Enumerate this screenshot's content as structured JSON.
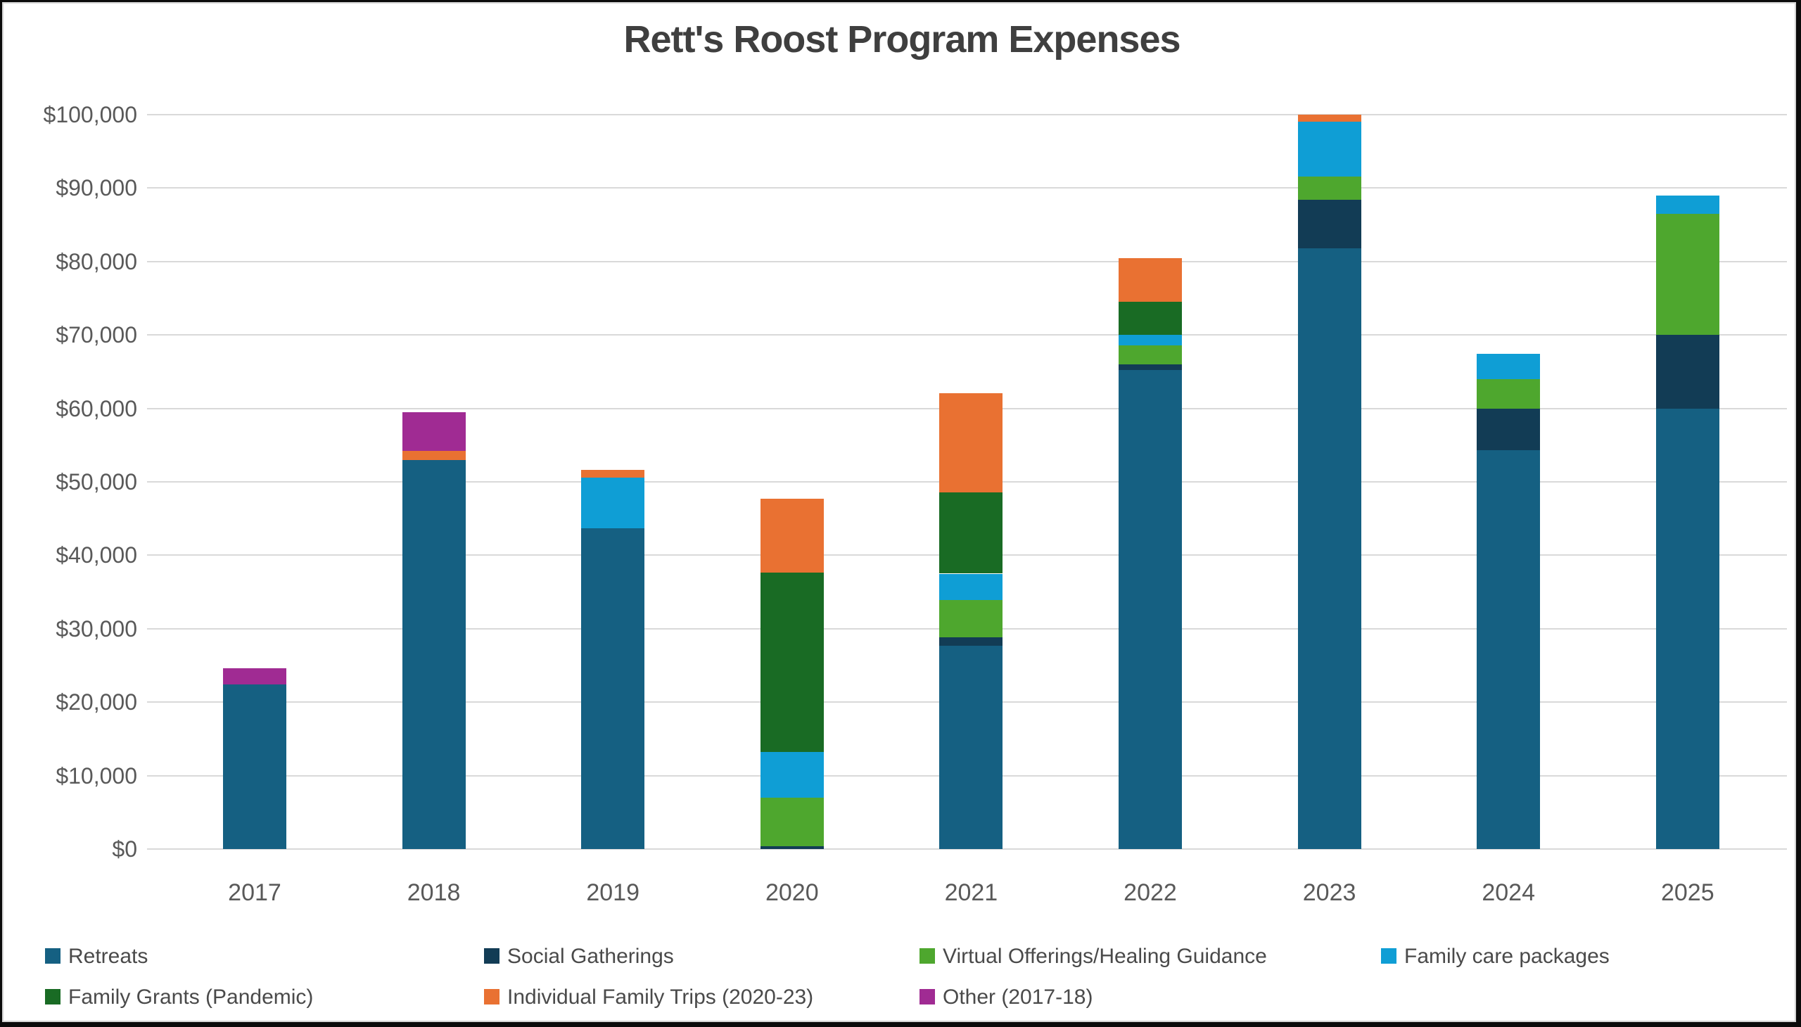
{
  "title": "Rett's Roost Program Expenses",
  "chart_data": {
    "type": "bar",
    "stacked": true,
    "title": "Rett's Roost Program Expenses",
    "xlabel": "",
    "ylabel": "",
    "ylim": [
      0,
      100000
    ],
    "ytick_step": 10000,
    "ytick_labels": [
      "$0",
      "$10,000",
      "$20,000",
      "$30,000",
      "$40,000",
      "$50,000",
      "$60,000",
      "$70,000",
      "$80,000",
      "$90,000",
      "$100,000"
    ],
    "grid": true,
    "legend_position": "bottom",
    "categories": [
      "2017",
      "2018",
      "2019",
      "2020",
      "2021",
      "2022",
      "2023",
      "2024",
      "2025"
    ],
    "series": [
      {
        "name": "Retreats",
        "color": "#156082",
        "values": [
          22400,
          53000,
          43700,
          0,
          27700,
          65200,
          81800,
          54300,
          60000
        ]
      },
      {
        "name": "Social Gatherings",
        "color": "#123C55",
        "values": [
          0,
          0,
          0,
          400,
          1100,
          800,
          6600,
          5700,
          10000
        ]
      },
      {
        "name": "Virtual Offerings/Healing Guidance",
        "color": "#4EA72E",
        "values": [
          0,
          0,
          0,
          6600,
          5100,
          2600,
          3200,
          4000,
          16500
        ]
      },
      {
        "name": "Family care packages",
        "color": "#0F9ED5",
        "values": [
          0,
          0,
          6900,
          6200,
          3600,
          1400,
          7400,
          3400,
          2500
        ]
      },
      {
        "name": "Family Grants (Pandemic)",
        "color": "#196B24",
        "values": [
          0,
          0,
          0,
          24400,
          11100,
          4500,
          0,
          0,
          0
        ]
      },
      {
        "name": "Individual Family Trips (2020-23)",
        "color": "#E97132",
        "values": [
          0,
          1200,
          1000,
          10100,
          13500,
          6000,
          1000,
          0,
          0
        ]
      },
      {
        "name": "Other (2017-18)",
        "color": "#A02B93",
        "values": [
          2200,
          5300,
          0,
          0,
          0,
          0,
          0,
          0,
          0
        ]
      }
    ],
    "totals": [
      24600,
      59500,
      51600,
      47700,
      62100,
      80500,
      100000,
      67400,
      89000
    ]
  },
  "colors": {
    "gridline": "#d9d9d9",
    "axis_text": "#595959",
    "title_text": "#3f3f3f",
    "legend_text": "#4a4a4a",
    "background": "#ffffff",
    "frame": "#0b0b0b"
  }
}
